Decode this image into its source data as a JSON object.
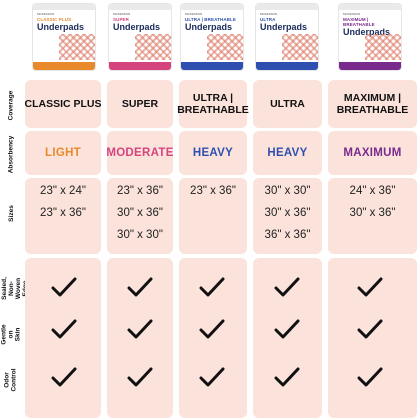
{
  "products": [
    {
      "brand": "MCKESSON",
      "line": "CLASSIC PLUS",
      "name": "Underpads",
      "accent": "#e8892b"
    },
    {
      "brand": "MCKESSON",
      "line": "SUPER",
      "name": "Underpads",
      "accent": "#d6447e"
    },
    {
      "brand": "MCKESSON",
      "line": "ULTRA | BREATHABLE",
      "name": "Underpads",
      "accent": "#2f4fb0"
    },
    {
      "brand": "MCKESSON",
      "line": "ULTRA",
      "name": "Underpads",
      "accent": "#2f4fb0"
    },
    {
      "brand": "MCKESSON",
      "line": "MAXIMUM | BREATHABLE",
      "name": "Underpads",
      "accent": "#7a2a8c"
    }
  ],
  "row_labels": {
    "coverage": "Coverage",
    "absorbency": "Absorbency",
    "sizes": "Sizes",
    "heat_sealed": "Heat-Sealed, Non-Woven Edge",
    "gentle": "Gentle on Skin",
    "odor": "Odor Control"
  },
  "coverage": [
    "CLASSIC PLUS",
    "SUPER",
    "ULTRA | BREATHABLE",
    "ULTRA",
    "MAXIMUM | BREATHABLE"
  ],
  "absorbency": [
    {
      "label": "LIGHT",
      "color": "#e8892b"
    },
    {
      "label": "MODERATE",
      "color": "#d6447e"
    },
    {
      "label": "HEAVY",
      "color": "#2f4fb0"
    },
    {
      "label": "HEAVY",
      "color": "#2f4fb0"
    },
    {
      "label": "MAXIMUM",
      "color": "#7a2a8c"
    }
  ],
  "sizes": [
    [
      "23\" x 24\"",
      "23\" x 36\""
    ],
    [
      "23\" x 36\"",
      "30\" x 36\"",
      "30\" x 30\""
    ],
    [
      "23\" x 36\""
    ],
    [
      "30\" x 30\"",
      "30\" x 36\"",
      "36\" x 36\""
    ],
    [
      "24\" x 36\"",
      "30\" x 36\""
    ]
  ],
  "features": {
    "heat_sealed": [
      true,
      true,
      true,
      true,
      true
    ],
    "gentle": [
      true,
      true,
      true,
      true,
      true
    ],
    "odor": [
      true,
      true,
      true,
      true,
      true
    ]
  },
  "colors": {
    "row_pink": "#fbe3dc",
    "check": "#111111"
  }
}
